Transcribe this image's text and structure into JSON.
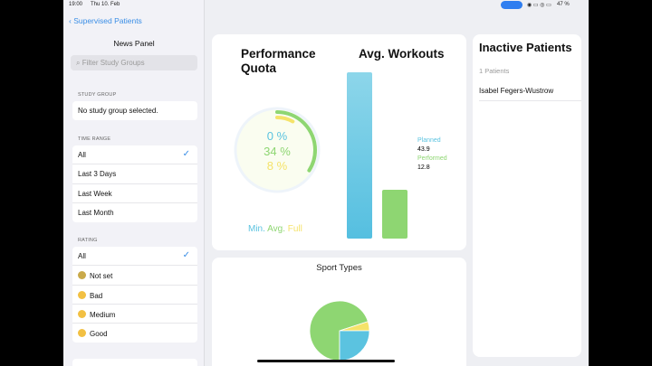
{
  "status": {
    "time": "19:00",
    "date": "Thu 10. Feb",
    "battery": "47 %"
  },
  "sidebar": {
    "back": "Supervised Patients",
    "title": "News Panel",
    "search_placeholder": "Filter Study Groups",
    "study_group": {
      "header": "STUDY GROUP",
      "value": "No study group selected."
    },
    "time_range": {
      "header": "TIME RANGE",
      "items": [
        "All",
        "Last 3 Days",
        "Last Week",
        "Last Month"
      ],
      "selected": "All"
    },
    "rating": {
      "header": "RATING",
      "items": [
        "All",
        "Not set",
        "Bad",
        "Medium",
        "Good"
      ],
      "selected": "All"
    }
  },
  "performance": {
    "title_line1": "Performance",
    "title_line2": "Quota",
    "min": "0 %",
    "avg": "34 %",
    "full": "8 %",
    "legend_min": "Min.",
    "legend_avg": "Avg.",
    "legend_full": "Full",
    "avg_fraction": 0.34,
    "full_fraction": 0.08
  },
  "workouts": {
    "title": "Avg. Workouts",
    "planned_label": "Planned",
    "planned": 43.9,
    "performed_label": "Performed",
    "performed": 12.8
  },
  "sport_types": {
    "title": "Sport Types",
    "slices": [
      {
        "color": "#8ed672",
        "fraction": 0.7
      },
      {
        "color": "#f5e36a",
        "fraction": 0.05
      },
      {
        "color": "#5bc3e0",
        "fraction": 0.25
      }
    ]
  },
  "inactive": {
    "title": "Inactive Patients",
    "count": "1 Patients",
    "patients": [
      "Isabel Fegers-Wustrow"
    ]
  },
  "colors": {
    "blue": "#5bc3e0",
    "green": "#8ed672",
    "yellow": "#f5e36a",
    "accent": "#3a8ee6"
  }
}
